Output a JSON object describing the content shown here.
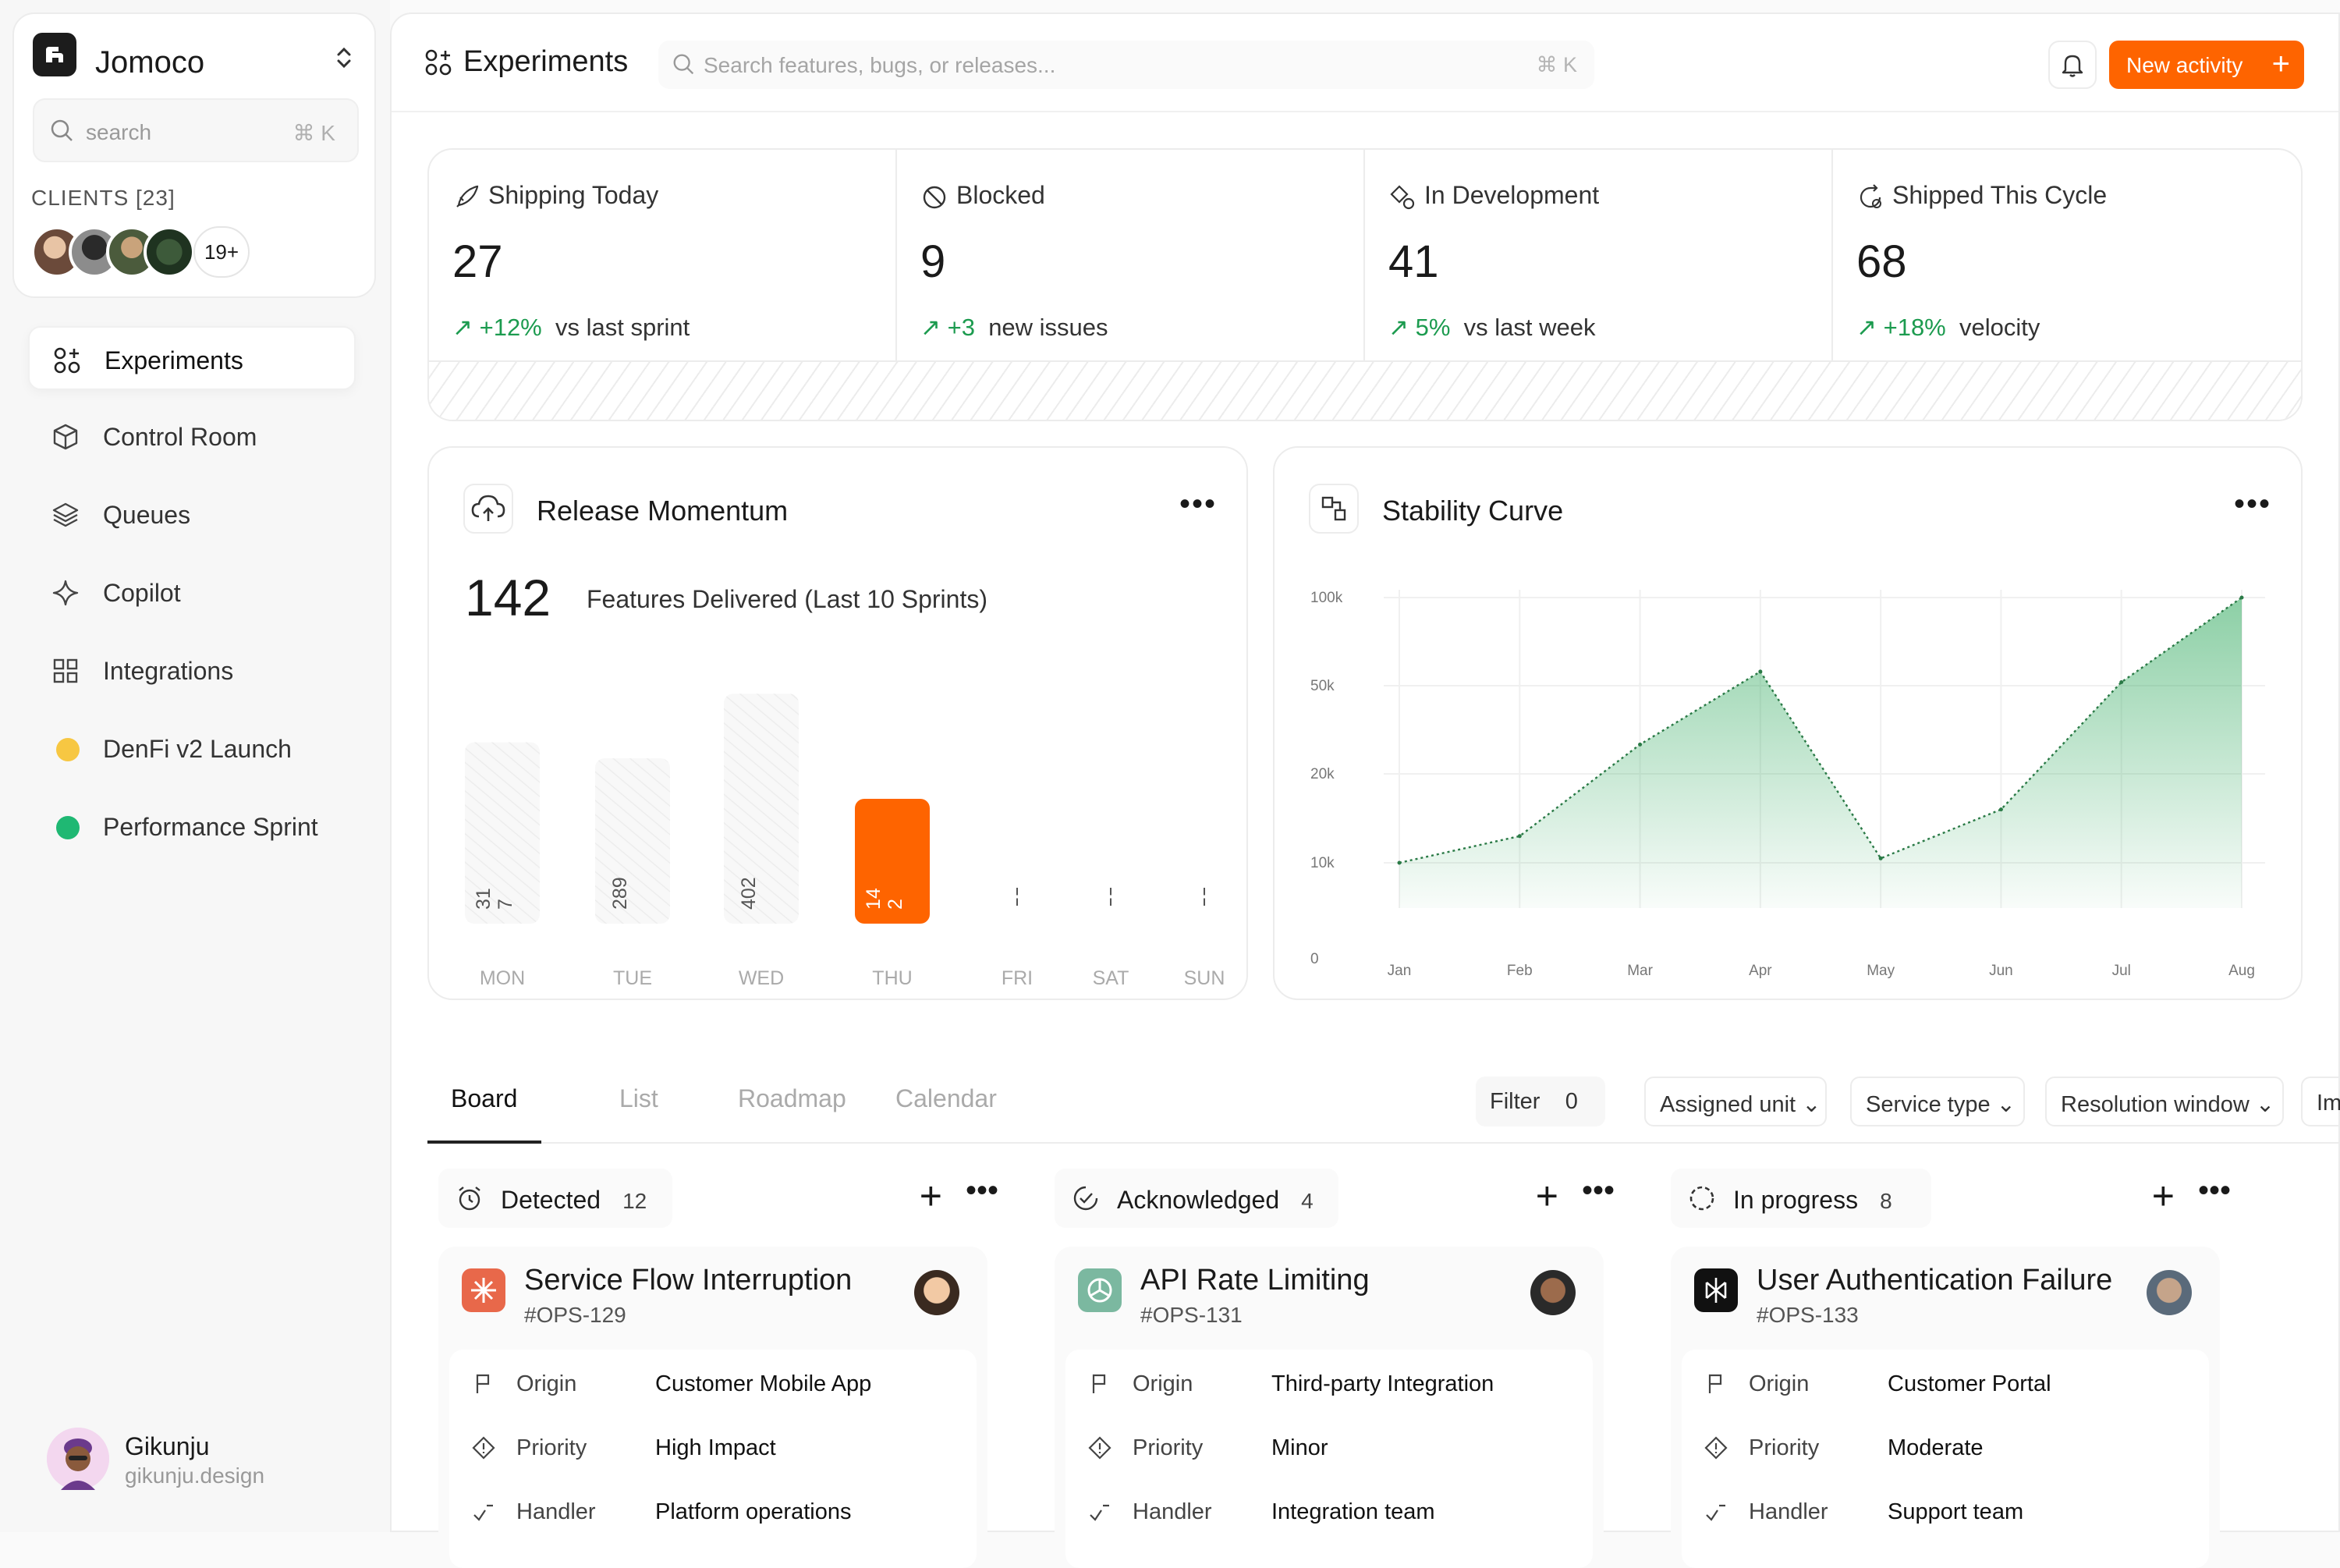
{
  "brand": {
    "name": "Jomoco",
    "search_placeholder": "search",
    "search_kbd": "⌘ K"
  },
  "clients": {
    "label": "CLIENTS [23]",
    "more": "19+"
  },
  "nav": [
    {
      "label": "Experiments",
      "icon": "experiments-icon",
      "active": true
    },
    {
      "label": "Control Room",
      "icon": "cube-icon"
    },
    {
      "label": "Queues",
      "icon": "layers-icon"
    },
    {
      "label": "Copilot",
      "icon": "sparkle-icon"
    },
    {
      "label": "Integrations",
      "icon": "grid-icon"
    },
    {
      "label": "DenFi v2 Launch",
      "icon": "yellow-dot",
      "color": "#f7c742"
    },
    {
      "label": "Performance Sprint",
      "icon": "green-dot",
      "color": "#1fb873"
    }
  ],
  "user": {
    "name": "Gikunju",
    "email": "gikunju.design"
  },
  "header": {
    "title": "Experiments",
    "search_placeholder": "Search features, bugs, or releases...",
    "search_kbd": "⌘ K",
    "new_button": "New activity",
    "accent": "#fe6400"
  },
  "stats": [
    {
      "title": "Shipping Today",
      "value": "27",
      "delta": "+12%",
      "note": "vs last sprint",
      "icon": "rocket-icon"
    },
    {
      "title": "Blocked",
      "value": "9",
      "delta": "+3",
      "note": "new issues",
      "icon": "blocked-icon"
    },
    {
      "title": "In Development",
      "value": "41",
      "delta": "5%",
      "note": "vs last week",
      "icon": "gears-icon"
    },
    {
      "title": "Shipped This Cycle",
      "value": "68",
      "delta": "+18%",
      "note": "velocity",
      "icon": "cycle-icon"
    }
  ],
  "momentum": {
    "title": "Release Momentum",
    "big": "142",
    "subtitle": "Features Delivered (Last 10 Sprints)",
    "chart_data": {
      "type": "bar",
      "categories": [
        "MON",
        "TUE",
        "WED",
        "THU",
        "FRI",
        "SAT",
        "SUN"
      ],
      "values": [
        317,
        289,
        402,
        142,
        null,
        null,
        null
      ],
      "labels": [
        "31\n7",
        "289",
        "402",
        "14\n2",
        "¦",
        "¦",
        "¦"
      ],
      "highlight": "THU",
      "highlight_color": "#fe6400"
    }
  },
  "stability": {
    "title": "Stability Curve",
    "chart_data": {
      "type": "area",
      "x": [
        "Jan",
        "Feb",
        "Mar",
        "Apr",
        "May",
        "Jun",
        "Jul",
        "Aug"
      ],
      "y": [
        10000,
        13000,
        30000,
        58000,
        10500,
        16000,
        52000,
        100000
      ],
      "yticks": [
        "100k",
        "50k",
        "20k",
        "10k",
        "0"
      ],
      "color": "#2ea85c"
    }
  },
  "tabs": [
    "Board",
    "List",
    "Roadmap",
    "Calendar"
  ],
  "filters": {
    "filter_label": "Filter",
    "filter_count": "0",
    "dropdowns": [
      "Assigned unit",
      "Service type",
      "Resolution window",
      "Im"
    ]
  },
  "columns": [
    {
      "title": "Detected",
      "count": "12",
      "card": {
        "title": "Service Flow Interruption",
        "id": "#OPS-129",
        "icon_color": "#e8684a",
        "rows": [
          {
            "k": "Origin",
            "v": "Customer Mobile App"
          },
          {
            "k": "Priority",
            "v": "High Impact"
          },
          {
            "k": "Handler",
            "v": "Platform operations"
          }
        ]
      }
    },
    {
      "title": "Acknowledged",
      "count": "4",
      "card": {
        "title": "API Rate Limiting",
        "id": "#OPS-131",
        "icon_color": "#7bb8a0",
        "rows": [
          {
            "k": "Origin",
            "v": "Third-party Integration"
          },
          {
            "k": "Priority",
            "v": "Minor"
          },
          {
            "k": "Handler",
            "v": "Integration team"
          }
        ]
      }
    },
    {
      "title": "In progress",
      "count": "8",
      "card": {
        "title": "User Authentication Failure",
        "id": "#OPS-133",
        "icon_color": "#111111",
        "rows": [
          {
            "k": "Origin",
            "v": "Customer Portal"
          },
          {
            "k": "Priority",
            "v": "Moderate"
          },
          {
            "k": "Handler",
            "v": "Support team"
          }
        ]
      }
    }
  ]
}
